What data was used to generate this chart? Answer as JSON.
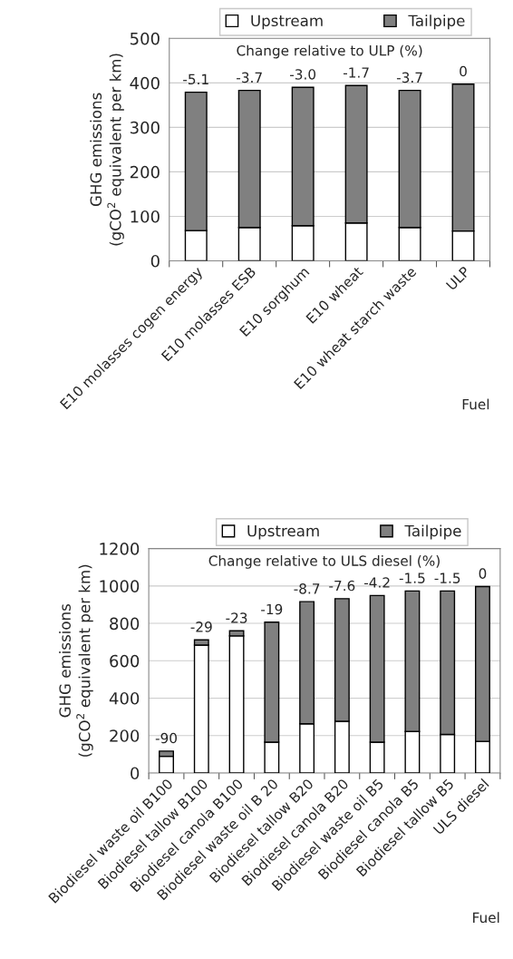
{
  "chart_data": [
    {
      "type": "bar",
      "stacked": true,
      "xlabel": "Fuel",
      "ylabel": "GHG emissions\n(gCO$^{2}$ equivalent per km)",
      "categories": [
        "E10 molasses cogen energy",
        "E10 molasses ESB",
        "E10 sorghum",
        "E10 wheat",
        "E10 wheat starch waste",
        "ULP"
      ],
      "series": [
        {
          "name": "Upstream",
          "color": "#ffffff",
          "values": [
            68,
            75,
            79,
            85,
            75,
            67
          ]
        },
        {
          "name": "Tailpipe",
          "color": "#808080",
          "values": [
            311,
            308,
            311,
            309,
            308,
            330
          ]
        }
      ],
      "ylim": [
        0,
        500
      ],
      "yticks": [
        0,
        100,
        200,
        300,
        400,
        500
      ],
      "grid": "y",
      "legend": "top",
      "annotations": [
        "Change relative to ULP (%)",
        {
          "text": "-5.1",
          "x": "E10 molasses cogen energy",
          "y": 379
        },
        {
          "text": "-3.7",
          "x": "E10 molasses ESB",
          "y": 383
        },
        {
          "text": "-3.0",
          "x": "E10 sorghum",
          "y": 390
        },
        {
          "text": "-1.7",
          "x": "E10 wheat",
          "y": 394
        },
        {
          "text": "-3.7",
          "x": "E10 wheat starch waste",
          "y": 383
        },
        {
          "text": "0",
          "x": "ULP",
          "y": 397
        }
      ]
    },
    {
      "type": "bar",
      "stacked": true,
      "xlabel": "Fuel",
      "ylabel": "GHG emissions\n(gCO$^{2}$ equivalent per km)",
      "categories": [
        "Biodiesel waste oil B100",
        "Biodiesel tallow B100",
        "Biodiesel canola B100",
        "Biodiesel waste oil B 20",
        "Biodiesel tallow B20",
        "Biodiesel canola B20",
        "Biodiesel waste oil B5",
        "Biodiesel canola B5",
        "Biodiesel tallow B5",
        "ULS diesel"
      ],
      "series": [
        {
          "name": "Upstream",
          "color": "#ffffff",
          "values": [
            89,
            684,
            733,
            165,
            263,
            276,
            165,
            222,
            206,
            169
          ]
        },
        {
          "name": "Tailpipe",
          "color": "#808080",
          "values": [
            28,
            28,
            27,
            641,
            653,
            656,
            784,
            751,
            767,
            828
          ]
        }
      ],
      "ylim": [
        0,
        1200
      ],
      "yticks": [
        0,
        200,
        400,
        600,
        800,
        1000,
        1200
      ],
      "grid": "y",
      "legend": "top",
      "annotations": [
        "Change relative to ULS diesel (%)",
        {
          "text": "-90",
          "x": "Biodiesel waste oil B100",
          "y": 117
        },
        {
          "text": "-29",
          "x": "Biodiesel tallow B100",
          "y": 712
        },
        {
          "text": "-23",
          "x": "Biodiesel canola B100",
          "y": 760
        },
        {
          "text": "-19",
          "x": "Biodiesel waste oil B 20",
          "y": 806
        },
        {
          "text": "-8.7",
          "x": "Biodiesel tallow B20",
          "y": 916
        },
        {
          "text": "-7.6",
          "x": "Biodiesel canola B20",
          "y": 932
        },
        {
          "text": "-4.2",
          "x": "Biodiesel waste oil B5",
          "y": 949
        },
        {
          "text": "-1.5",
          "x": "Biodiesel canola B5",
          "y": 973
        },
        {
          "text": "-1.5",
          "x": "Biodiesel tallow B5",
          "y": 973
        },
        {
          "text": "0",
          "x": "ULS diesel",
          "y": 997
        }
      ]
    }
  ]
}
